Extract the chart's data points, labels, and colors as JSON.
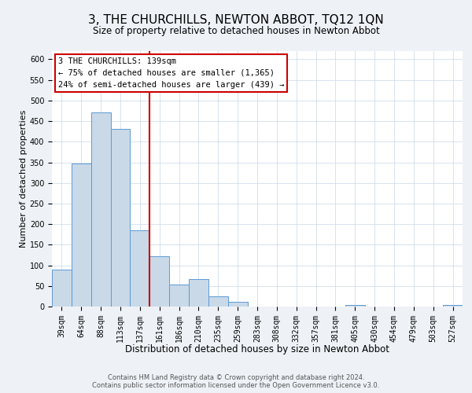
{
  "title": "3, THE CHURCHILLS, NEWTON ABBOT, TQ12 1QN",
  "subtitle": "Size of property relative to detached houses in Newton Abbot",
  "xlabel": "Distribution of detached houses by size in Newton Abbot",
  "ylabel": "Number of detached properties",
  "bar_labels": [
    "39sqm",
    "64sqm",
    "88sqm",
    "113sqm",
    "137sqm",
    "161sqm",
    "186sqm",
    "210sqm",
    "235sqm",
    "259sqm",
    "283sqm",
    "308sqm",
    "332sqm",
    "357sqm",
    "381sqm",
    "405sqm",
    "430sqm",
    "454sqm",
    "479sqm",
    "503sqm",
    "527sqm"
  ],
  "bar_values": [
    89,
    348,
    471,
    431,
    185,
    123,
    54,
    67,
    24,
    12,
    0,
    0,
    0,
    0,
    0,
    3,
    0,
    0,
    0,
    0,
    3
  ],
  "bar_color": "#c9d9e8",
  "bar_edge_color": "#5b9bd5",
  "vline_index": 4,
  "vline_color": "#cc0000",
  "ylim": [
    0,
    620
  ],
  "yticks": [
    0,
    50,
    100,
    150,
    200,
    250,
    300,
    350,
    400,
    450,
    500,
    550,
    600
  ],
  "annotation_text_line1": "3 THE CHURCHILLS: 139sqm",
  "annotation_text_line2": "← 75% of detached houses are smaller (1,365)",
  "annotation_text_line3": "24% of semi-detached houses are larger (439) →",
  "annotation_box_color": "#cc0000",
  "footer_line1": "Contains HM Land Registry data © Crown copyright and database right 2024.",
  "footer_line2": "Contains public sector information licensed under the Open Government Licence v3.0.",
  "title_fontsize": 11,
  "subtitle_fontsize": 8.5,
  "xlabel_fontsize": 8.5,
  "ylabel_fontsize": 8,
  "tick_fontsize": 7,
  "annotation_fontsize": 7.5,
  "footer_fontsize": 6,
  "bg_color": "#eef2f7",
  "plot_bg_color": "#ffffff",
  "grid_color": "#c8d8e8"
}
